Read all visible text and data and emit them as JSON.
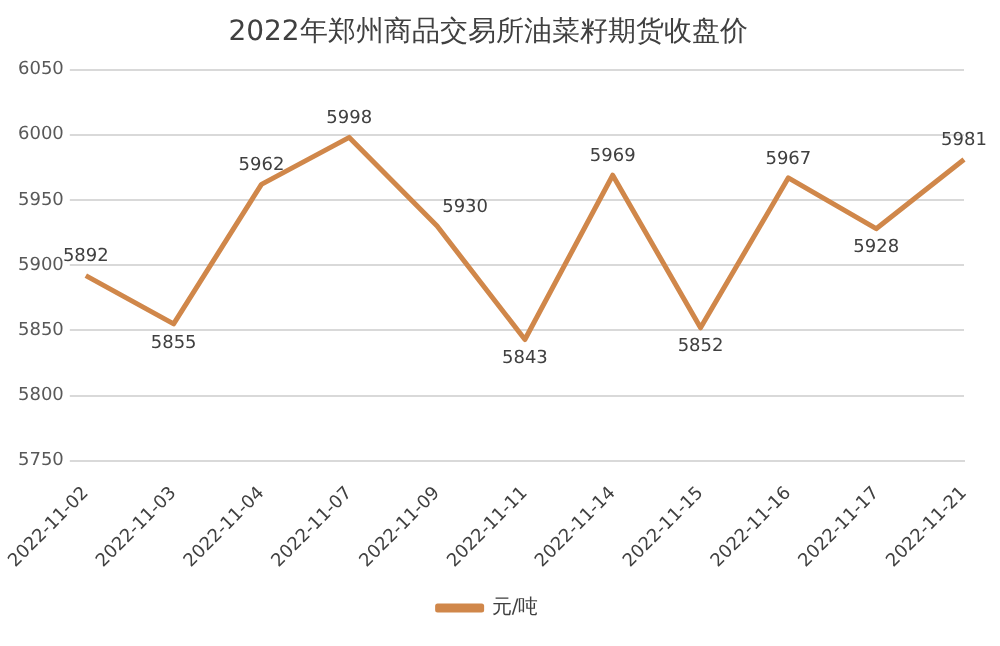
{
  "chart_data": {
    "type": "line",
    "title": "2022年郑州商品交易所油菜籽期货收盘价",
    "categories": [
      "2022-11-02",
      "2022-11-03",
      "2022-11-04",
      "2022-11-07",
      "2022-11-09",
      "2022-11-11",
      "2022-11-14",
      "2022-11-15",
      "2022-11-16",
      "2022-11-17",
      "2022-11-21"
    ],
    "series": [
      {
        "name": "元/吨",
        "color": "#d0874a",
        "values": [
          5892,
          5855,
          5962,
          5998,
          5930,
          5843,
          5969,
          5852,
          5967,
          5928,
          5981
        ]
      }
    ],
    "ylim": [
      5750,
      6050
    ],
    "yticks": [
      5750,
      5800,
      5850,
      5900,
      5950,
      6000,
      6050
    ],
    "grid": "y",
    "legend": "bottom",
    "data_labels": true,
    "marker": "none"
  }
}
